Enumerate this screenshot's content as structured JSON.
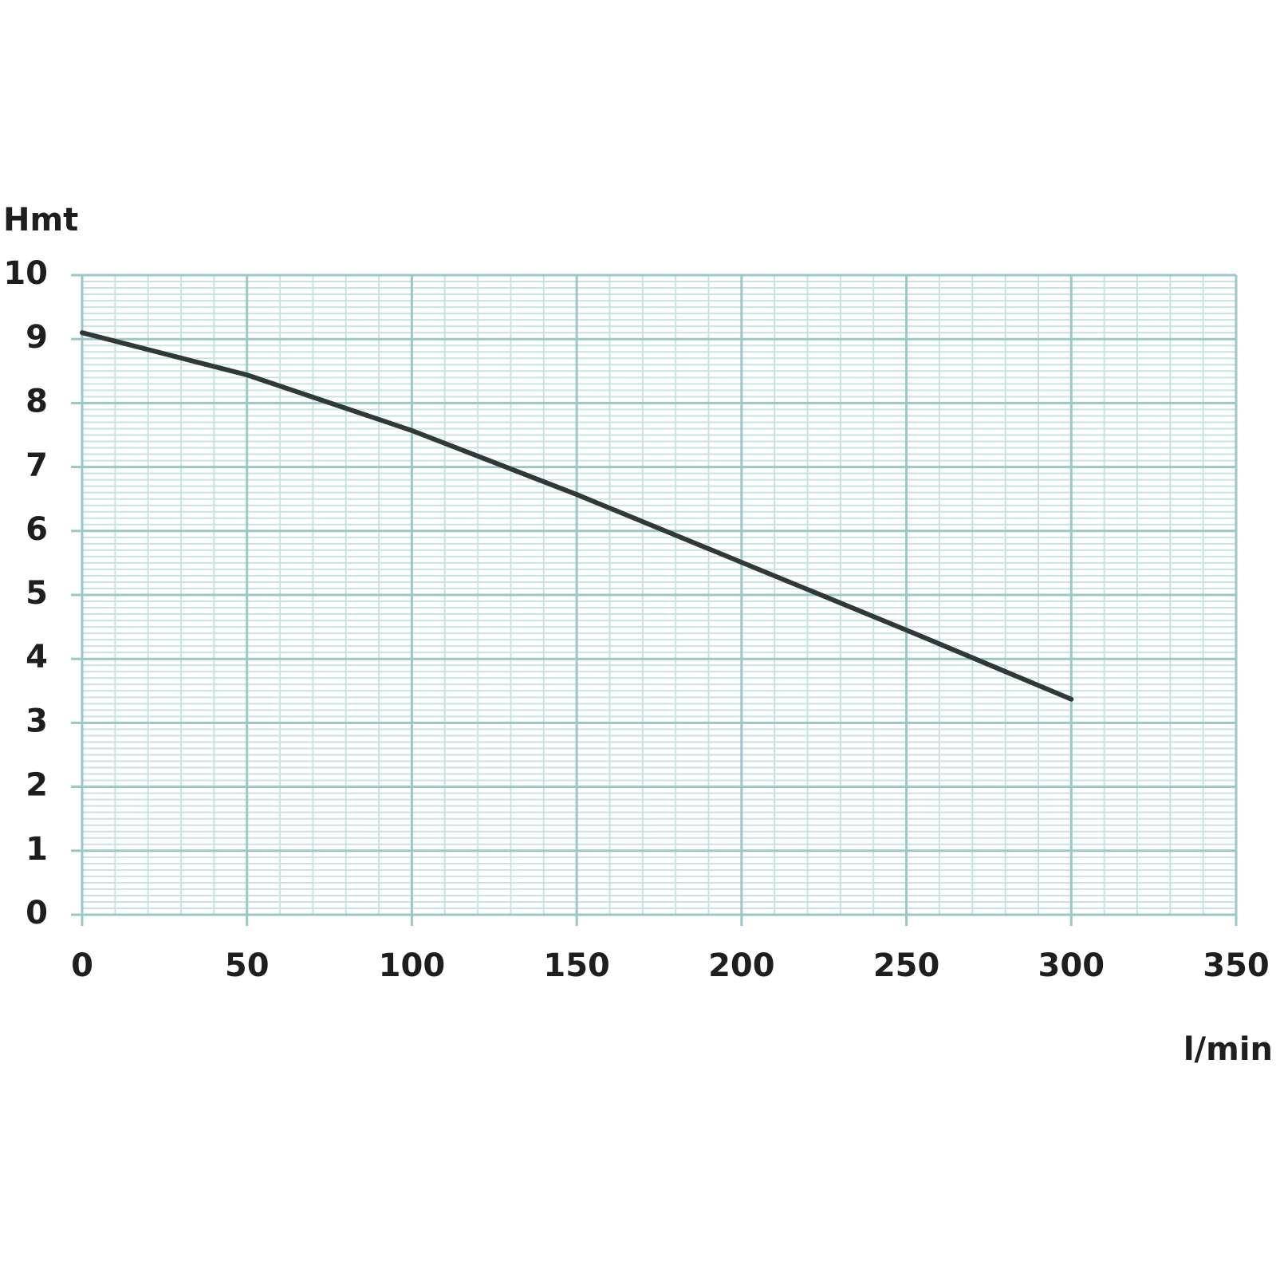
{
  "chart_data": {
    "type": "line",
    "y_label": "Hmt",
    "x_label": "l/min",
    "x": [
      0,
      50,
      100,
      150,
      200,
      250,
      300
    ],
    "series": [
      {
        "color": "#2f3a37",
        "values": [
          9.1,
          8.44,
          7.57,
          6.57,
          5.51,
          4.45,
          3.37
        ]
      }
    ],
    "xlim": [
      0,
      350
    ],
    "xticks": [
      0,
      50,
      100,
      150,
      200,
      250,
      300,
      350
    ],
    "ylim": [
      0,
      10
    ],
    "yticks": [
      0,
      1,
      2,
      3,
      4,
      5,
      6,
      7,
      8,
      9,
      10
    ],
    "grid": true,
    "minor_grid_step": [
      10,
      0.1
    ]
  }
}
